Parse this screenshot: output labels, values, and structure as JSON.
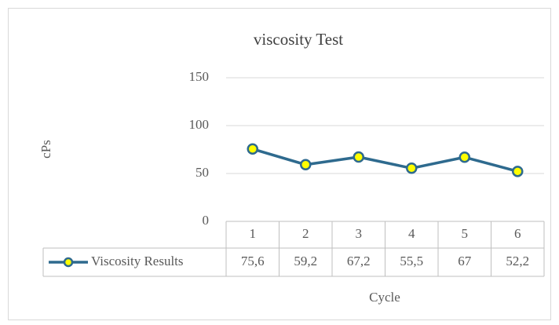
{
  "chart_data": {
    "type": "line",
    "title": "viscosity Test",
    "categories": [
      "1",
      "2",
      "3",
      "4",
      "5",
      "6"
    ],
    "series": [
      {
        "name": "Viscosity Results",
        "color": "#2e6a8e",
        "marker_color": "#ffff00",
        "values": [
          75.6,
          59.2,
          67.2,
          55.5,
          67,
          52.2
        ],
        "value_labels": [
          "75,6",
          "59,2",
          "67,2",
          "55,5",
          "67",
          "52,2"
        ]
      }
    ],
    "ylim": [
      0,
      150
    ],
    "yticks": [
      0,
      50,
      100,
      150
    ],
    "grid": true,
    "x_label": "Cycle",
    "y_label": "cPs"
  }
}
